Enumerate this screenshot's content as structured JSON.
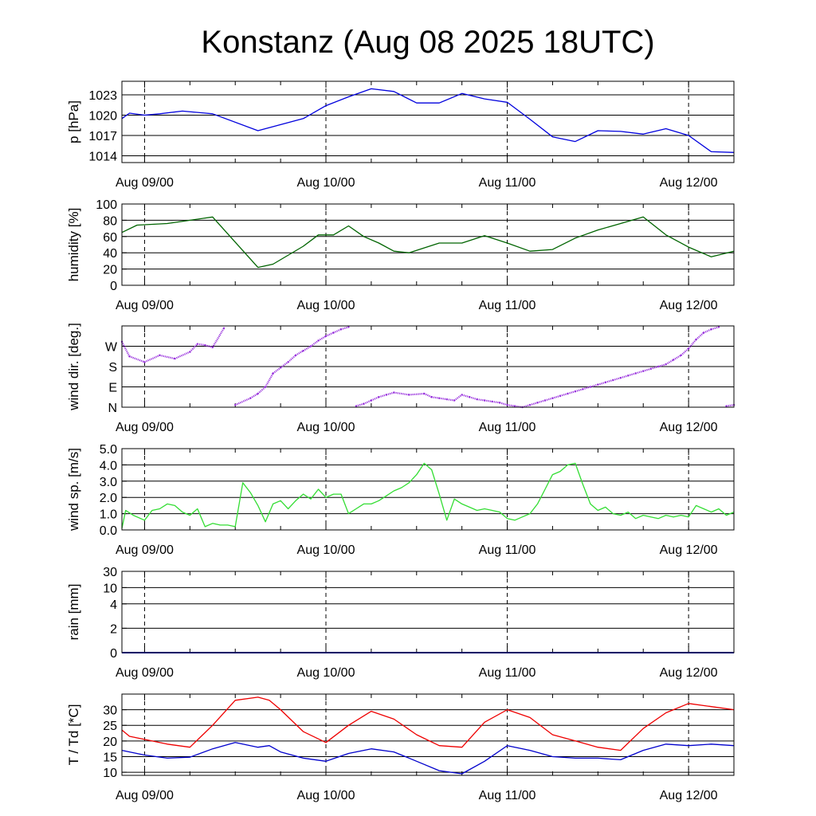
{
  "title": "Konstanz (Aug 08 2025 18UTC)",
  "x_tick_labels": [
    "Aug 09/00",
    "Aug 10/00",
    "Aug 11/00",
    "Aug 12/00"
  ],
  "chart_data": [
    {
      "type": "line",
      "ylabel": "p [hPa]",
      "ylim": [
        1013,
        1025
      ],
      "yticks": [
        1014,
        1017,
        1020,
        1023
      ],
      "ytick_labels": [
        "1014",
        "1017",
        "1020",
        "1023"
      ],
      "x_hours": [
        0,
        2,
        6,
        10,
        16,
        24,
        36,
        48,
        54,
        60,
        66,
        72,
        78,
        84,
        90,
        96,
        102,
        108,
        114,
        120,
        126,
        132,
        138,
        144,
        150,
        156,
        162
      ],
      "series": [
        {
          "values": [
            1019.5,
            1020.3,
            1020.0,
            1020.2,
            1020.6,
            1020.2,
            1017.7,
            1019.5,
            1021.4,
            1022.7,
            1023.9,
            1023.5,
            1021.8,
            1021.8,
            1023.2,
            1022.4,
            1021.9,
            1019.4,
            1016.8,
            1016.1,
            1017.7,
            1017.6,
            1017.2,
            1018.0,
            1017.0,
            1014.6,
            1014.5
          ],
          "color": "#0000dd"
        }
      ],
      "grid": true
    },
    {
      "type": "line",
      "ylabel": "humidity [%]",
      "ylim": [
        0,
        100
      ],
      "yticks": [
        0,
        20,
        40,
        60,
        80,
        100
      ],
      "ytick_labels": [
        "0",
        "20",
        "40",
        "60",
        "80",
        "100"
      ],
      "x_hours": [
        0,
        4,
        12,
        24,
        36,
        40,
        48,
        52,
        56,
        60,
        64,
        68,
        72,
        76,
        84,
        90,
        96,
        102,
        108,
        114,
        120,
        126,
        132,
        138,
        144,
        150,
        156,
        162
      ],
      "series": [
        {
          "values": [
            65,
            74,
            76,
            84,
            22,
            26,
            48,
            62,
            62,
            73,
            60,
            52,
            42,
            40,
            52,
            52,
            61,
            52,
            42,
            44,
            58,
            68,
            76,
            84,
            62,
            47,
            35,
            42
          ],
          "color": "#006400"
        }
      ],
      "grid": true
    },
    {
      "type": "scatter",
      "ylabel": "wind dir. [deg.]",
      "ylim": [
        0,
        360
      ],
      "yticks": [
        0,
        90,
        180,
        270
      ],
      "ytick_labels": [
        "N",
        "E",
        "S",
        "W"
      ],
      "x_hours": [
        0,
        2,
        6,
        10,
        14,
        18,
        20,
        22,
        24,
        27,
        30,
        34,
        36,
        38,
        40,
        42,
        44,
        46,
        48,
        50,
        52,
        54,
        56,
        58,
        60,
        62,
        64,
        66,
        68,
        70,
        72,
        76,
        80,
        82,
        84,
        86,
        88,
        90,
        92,
        94,
        96,
        98,
        100,
        102,
        104,
        106,
        108,
        110,
        112,
        114,
        116,
        118,
        120,
        122,
        124,
        126,
        128,
        130,
        132,
        134,
        136,
        138,
        140,
        142,
        144,
        146,
        148,
        150,
        152,
        154,
        156,
        158,
        160,
        162
      ],
      "series": [
        {
          "values": [
            290,
            225,
            200,
            230,
            215,
            245,
            280,
            275,
            265,
            350,
            10,
            40,
            60,
            90,
            150,
            175,
            200,
            230,
            250,
            270,
            295,
            315,
            330,
            345,
            355,
            5,
            15,
            30,
            45,
            55,
            65,
            55,
            60,
            45,
            40,
            35,
            30,
            55,
            45,
            35,
            30,
            25,
            20,
            10,
            5,
            0,
            10,
            20,
            30,
            40,
            50,
            60,
            70,
            80,
            90,
            100,
            110,
            120,
            130,
            140,
            150,
            160,
            170,
            180,
            190,
            210,
            230,
            260,
            300,
            330,
            345,
            355,
            5,
            10
          ],
          "color": "#9933dd"
        }
      ],
      "grid": true
    },
    {
      "type": "line",
      "ylabel": "wind sp. [m/s]",
      "ylim": [
        0,
        5
      ],
      "yticks": [
        0,
        1,
        2,
        3,
        4,
        5
      ],
      "ytick_labels": [
        "0.0",
        "1.0",
        "2.0",
        "3.0",
        "4.0",
        "5.0"
      ],
      "x_hours": [
        0,
        1,
        3,
        6,
        8,
        10,
        12,
        14,
        16,
        18,
        20,
        22,
        24,
        26,
        28,
        30,
        32,
        34,
        36,
        38,
        40,
        42,
        44,
        46,
        48,
        50,
        52,
        54,
        56,
        58,
        60,
        62,
        64,
        66,
        68,
        70,
        72,
        74,
        76,
        78,
        80,
        82,
        84,
        86,
        88,
        90,
        92,
        94,
        96,
        98,
        100,
        102,
        104,
        106,
        108,
        110,
        112,
        114,
        116,
        118,
        120,
        122,
        124,
        126,
        128,
        130,
        132,
        134,
        136,
        138,
        140,
        142,
        144,
        146,
        148,
        150,
        152,
        154,
        156,
        158,
        160,
        162
      ],
      "series": [
        {
          "values": [
            0.1,
            1.2,
            0.9,
            0.6,
            1.2,
            1.3,
            1.6,
            1.5,
            1.1,
            0.9,
            1.3,
            0.2,
            0.4,
            0.3,
            0.3,
            0.2,
            2.9,
            2.3,
            1.5,
            0.5,
            1.6,
            1.8,
            1.3,
            1.8,
            2.2,
            1.9,
            2.5,
            2.0,
            2.2,
            2.2,
            1.0,
            1.3,
            1.6,
            1.6,
            1.8,
            2.1,
            2.4,
            2.6,
            2.9,
            3.4,
            4.1,
            3.7,
            2.2,
            0.6,
            1.9,
            1.6,
            1.4,
            1.2,
            1.3,
            1.2,
            1.1,
            0.7,
            0.6,
            0.8,
            1.0,
            1.6,
            2.5,
            3.4,
            3.6,
            4.0,
            4.1,
            2.8,
            1.6,
            1.2,
            1.4,
            1.0,
            0.9,
            1.1,
            0.7,
            0.9,
            0.8,
            0.7,
            0.9,
            0.8,
            0.9,
            0.8,
            1.5,
            1.3,
            1.1,
            1.3,
            0.9,
            1.1
          ],
          "color": "#33dd33"
        }
      ],
      "grid": true
    },
    {
      "type": "line",
      "ylabel": "rain [mm]",
      "ylim": [
        0,
        30
      ],
      "yticks": [
        0,
        2,
        4,
        10,
        30
      ],
      "ytick_labels": [
        "0",
        "2",
        "4",
        "10",
        "30"
      ],
      "x_hours": [
        0,
        162
      ],
      "series": [
        {
          "values": [
            0,
            0
          ],
          "color": "#0000cc"
        }
      ],
      "grid": true
    },
    {
      "type": "line",
      "ylabel": "T / Td [*C]",
      "ylim": [
        9,
        35
      ],
      "yticks": [
        10,
        15,
        20,
        25,
        30
      ],
      "ytick_labels": [
        "10",
        "15",
        "20",
        "25",
        "30"
      ],
      "x_hours": [
        0,
        2,
        6,
        12,
        18,
        24,
        30,
        36,
        39,
        42,
        48,
        54,
        60,
        66,
        72,
        78,
        84,
        90,
        96,
        102,
        108,
        114,
        120,
        126,
        132,
        138,
        144,
        150,
        156,
        162
      ],
      "series": [
        {
          "name": "T",
          "values": [
            23.5,
            21.5,
            20.5,
            19.0,
            18.0,
            25.0,
            33.0,
            34.0,
            33.0,
            30.0,
            23.0,
            19.5,
            25.0,
            29.5,
            27.0,
            22.0,
            18.5,
            18.0,
            26.0,
            30.0,
            27.5,
            22.0,
            20.0,
            18.0,
            17.0,
            24.0,
            29.0,
            32.0,
            31.0,
            30.0
          ],
          "color": "#ee0000"
        },
        {
          "name": "Td",
          "values": [
            17.0,
            16.5,
            15.5,
            14.5,
            14.8,
            17.5,
            19.5,
            18.0,
            18.5,
            16.5,
            14.5,
            13.5,
            16.0,
            17.5,
            16.5,
            13.5,
            10.5,
            9.5,
            13.5,
            18.5,
            17.0,
            15.0,
            14.5,
            14.5,
            14.0,
            17.0,
            19.0,
            18.5,
            19.0,
            18.5
          ],
          "color": "#0000cc"
        }
      ],
      "grid": true
    }
  ]
}
